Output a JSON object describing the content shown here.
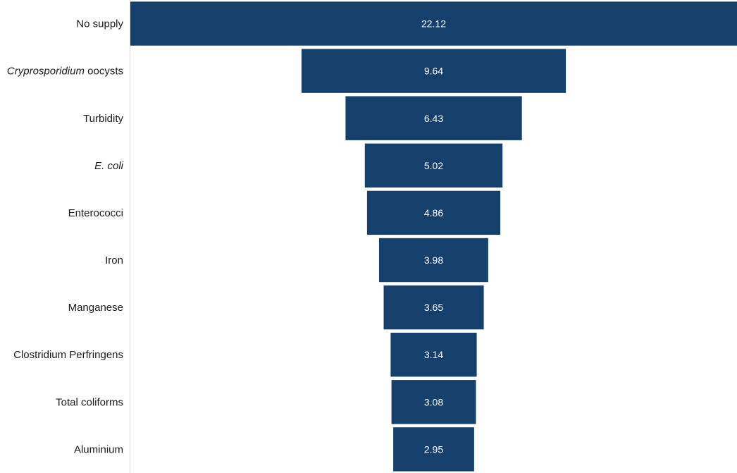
{
  "chart_data": {
    "type": "bar",
    "orientation": "horizontal",
    "style": "funnel",
    "categories": [
      {
        "label": "No supply",
        "italic_part": "",
        "rest": "No supply"
      },
      {
        "label": "Cryprosporidium oocysts",
        "italic_part": "Cryprosporidium",
        "rest": " oocysts"
      },
      {
        "label": "Turbidity",
        "italic_part": "",
        "rest": "Turbidity"
      },
      {
        "label": "E. coli",
        "italic_part": "E. coli",
        "rest": ""
      },
      {
        "label": "Enterococci",
        "italic_part": "",
        "rest": "Enterococci"
      },
      {
        "label": "Iron",
        "italic_part": "",
        "rest": "Iron"
      },
      {
        "label": "Manganese",
        "italic_part": "",
        "rest": "Manganese"
      },
      {
        "label": "Clostridium Perfringens",
        "italic_part": "",
        "rest": "Clostridium Perfringens"
      },
      {
        "label": "Total coliforms",
        "italic_part": "",
        "rest": "Total coliforms"
      },
      {
        "label": "Aluminium",
        "italic_part": "",
        "rest": "Aluminium"
      }
    ],
    "values": [
      22.12,
      9.64,
      6.43,
      5.02,
      4.86,
      3.98,
      3.65,
      3.14,
      3.08,
      2.95
    ],
    "value_labels": [
      "22.12",
      "9.64",
      "6.43",
      "5.02",
      "4.86",
      "3.98",
      "3.65",
      "3.14",
      "3.08",
      "2.95"
    ],
    "title": "",
    "xlabel": "",
    "ylabel": "",
    "grid": false,
    "legend": "none",
    "colors": {
      "bar": "#15406B",
      "axis": "#d9d9d9",
      "label": "#1a1a1a",
      "value_label": "#ffffff"
    }
  }
}
